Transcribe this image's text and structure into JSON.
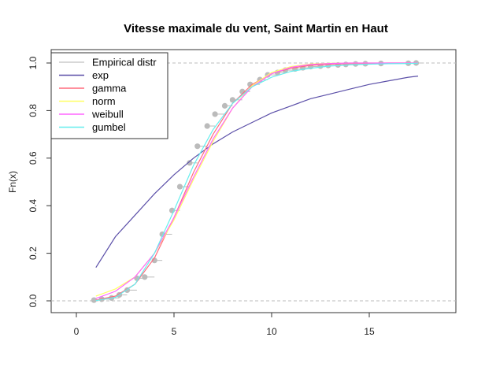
{
  "chart_data": {
    "type": "line",
    "title": "Vitesse maximale du vent, Saint Martin en Haut",
    "xlabel": "",
    "ylabel": "Fn(x)",
    "xlim": [
      0,
      19
    ],
    "ylim": [
      0,
      1
    ],
    "x_ticks": [
      "0",
      "5",
      "10",
      "15"
    ],
    "x_tick_values": [
      0,
      5,
      10,
      15
    ],
    "y_ticks": [
      "0.0",
      "0.2",
      "0.4",
      "0.6",
      "0.8",
      "1.0"
    ],
    "y_tick_values": [
      0.0,
      0.2,
      0.4,
      0.6,
      0.8,
      1.0
    ],
    "reference_lines": [
      0,
      1
    ],
    "legend": {
      "placement": "top-left",
      "entries": [
        {
          "label": "Empirical distr",
          "color": "#cccccc"
        },
        {
          "label": "exp",
          "color": "#5b4fa8"
        },
        {
          "label": "gamma",
          "color": "#ff6b7d"
        },
        {
          "label": "norm",
          "color": "#ffff66"
        },
        {
          "label": "weibull",
          "color": "#ff66ff"
        },
        {
          "label": "gumbel",
          "color": "#66eeee"
        }
      ]
    },
    "empirical": {
      "name": "Empirical distr",
      "color": "#bbbbbb",
      "x": [
        0.9,
        1.3,
        1.8,
        2.2,
        2.6,
        3.1,
        3.5,
        4.0,
        4.4,
        4.9,
        5.3,
        5.8,
        6.2,
        6.7,
        7.1,
        7.6,
        8.0,
        8.5,
        8.9,
        9.4,
        9.8,
        10.3,
        10.7,
        11.2,
        11.6,
        12.0,
        12.5,
        12.9,
        13.4,
        13.8,
        14.3,
        14.8,
        15.6,
        17.0,
        17.4
      ],
      "y": [
        0.003,
        0.007,
        0.012,
        0.025,
        0.045,
        0.095,
        0.1,
        0.17,
        0.28,
        0.38,
        0.48,
        0.58,
        0.65,
        0.735,
        0.785,
        0.82,
        0.845,
        0.88,
        0.91,
        0.93,
        0.95,
        0.96,
        0.97,
        0.975,
        0.98,
        0.985,
        0.987,
        0.99,
        0.992,
        0.994,
        0.996,
        0.997,
        0.998,
        0.999,
        1.0
      ]
    },
    "series": [
      {
        "name": "exp",
        "color": "#5b4fa8",
        "x": [
          1,
          2,
          3,
          4,
          5,
          6,
          7,
          8,
          9,
          10,
          11,
          12,
          13,
          14,
          15,
          16,
          17,
          17.5
        ],
        "y": [
          0.14,
          0.27,
          0.36,
          0.45,
          0.53,
          0.6,
          0.66,
          0.71,
          0.75,
          0.79,
          0.82,
          0.85,
          0.87,
          0.89,
          0.91,
          0.925,
          0.94,
          0.945
        ]
      },
      {
        "name": "gamma",
        "color": "#ff6b7d",
        "x": [
          1,
          2,
          3,
          4,
          5,
          6,
          7,
          8,
          9,
          10,
          11,
          12,
          13,
          14,
          15,
          16,
          17,
          17.5
        ],
        "y": [
          0.003,
          0.02,
          0.07,
          0.18,
          0.35,
          0.54,
          0.7,
          0.83,
          0.91,
          0.955,
          0.978,
          0.99,
          0.995,
          0.998,
          0.999,
          1.0,
          1.0,
          1.0
        ]
      },
      {
        "name": "norm",
        "color": "#ffff66",
        "x": [
          1,
          2,
          3,
          4,
          5,
          6,
          7,
          8,
          9,
          10,
          11,
          12,
          13,
          14,
          15,
          16,
          17,
          17.5
        ],
        "y": [
          0.02,
          0.05,
          0.1,
          0.2,
          0.34,
          0.51,
          0.67,
          0.81,
          0.905,
          0.96,
          0.985,
          0.996,
          0.999,
          1.0,
          1.0,
          1.0,
          1.0,
          1.0
        ]
      },
      {
        "name": "weibull",
        "color": "#ff66ff",
        "x": [
          1,
          2,
          3,
          4,
          5,
          6,
          7,
          8,
          9,
          10,
          11,
          12,
          13,
          14,
          15,
          16,
          17,
          17.5
        ],
        "y": [
          0.01,
          0.04,
          0.1,
          0.2,
          0.35,
          0.52,
          0.68,
          0.81,
          0.9,
          0.955,
          0.982,
          0.994,
          0.998,
          1.0,
          1.0,
          1.0,
          1.0,
          1.0
        ]
      },
      {
        "name": "gumbel",
        "color": "#66eeee",
        "x": [
          1,
          2,
          3,
          4,
          5,
          6,
          7,
          8,
          9,
          10,
          11,
          12,
          13,
          14,
          15,
          16,
          17,
          17.5
        ],
        "y": [
          0.001,
          0.015,
          0.07,
          0.2,
          0.38,
          0.57,
          0.72,
          0.83,
          0.9,
          0.94,
          0.965,
          0.978,
          0.987,
          0.992,
          0.995,
          0.997,
          0.998,
          0.999
        ]
      }
    ]
  }
}
